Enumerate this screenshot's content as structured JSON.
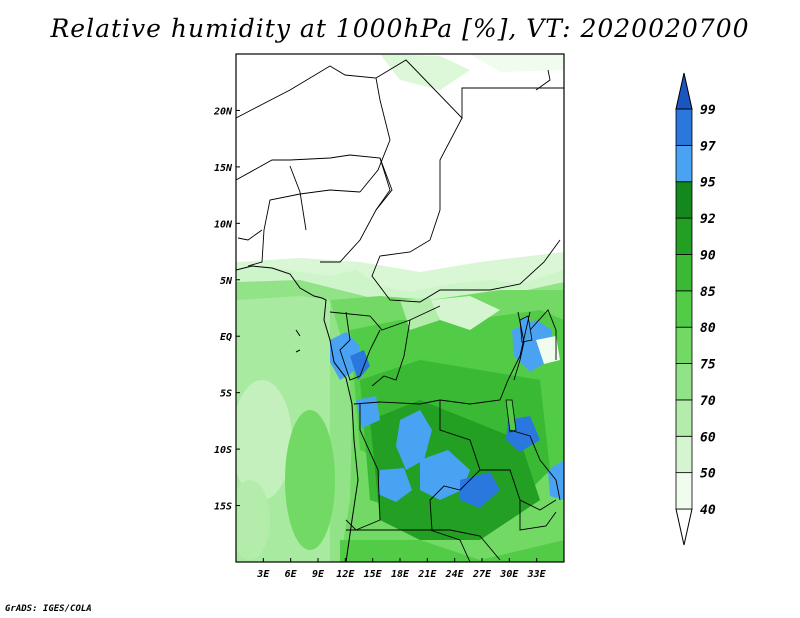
{
  "title": "Relative humidity at 1000hPa [%], VT: 2020020700",
  "credit": "GrADS: IGES/COLA",
  "map": {
    "lon_range": [
      0,
      36
    ],
    "lat_range": [
      -20,
      25
    ],
    "x_ticks": [
      {
        "lon": 3,
        "label": "3E"
      },
      {
        "lon": 6,
        "label": "6E"
      },
      {
        "lon": 9,
        "label": "9E"
      },
      {
        "lon": 12,
        "label": "12E"
      },
      {
        "lon": 15,
        "label": "15E"
      },
      {
        "lon": 18,
        "label": "18E"
      },
      {
        "lon": 21,
        "label": "21E"
      },
      {
        "lon": 24,
        "label": "24E"
      },
      {
        "lon": 27,
        "label": "27E"
      },
      {
        "lon": 30,
        "label": "30E"
      },
      {
        "lon": 33,
        "label": "33E"
      }
    ],
    "y_ticks": [
      {
        "lat": 20,
        "label": "20N"
      },
      {
        "lat": 15,
        "label": "15N"
      },
      {
        "lat": 10,
        "label": "10N"
      },
      {
        "lat": 5,
        "label": "5N"
      },
      {
        "lat": 0,
        "label": "EQ"
      },
      {
        "lat": -5,
        "label": "5S"
      },
      {
        "lat": -10,
        "label": "10S"
      },
      {
        "lat": -15,
        "label": "15S"
      }
    ]
  },
  "colorbar": {
    "levels": [
      {
        "label": "40",
        "color": "#f0fcee"
      },
      {
        "label": "50",
        "color": "#d5f5d0"
      },
      {
        "label": "60",
        "color": "#b4edab"
      },
      {
        "label": "70",
        "color": "#92e388"
      },
      {
        "label": "75",
        "color": "#72d965"
      },
      {
        "label": "80",
        "color": "#52cb47"
      },
      {
        "label": "85",
        "color": "#3ab934"
      },
      {
        "label": "90",
        "color": "#239f24"
      },
      {
        "label": "92",
        "color": "#14881c"
      },
      {
        "label": "95",
        "color": "#4aa3f2"
      },
      {
        "label": "97",
        "color": "#2a78de"
      },
      {
        "label": "99",
        "color": "#1a55c0"
      }
    ],
    "under_color": "#ffffff",
    "over_color": "#1a55c0"
  }
}
